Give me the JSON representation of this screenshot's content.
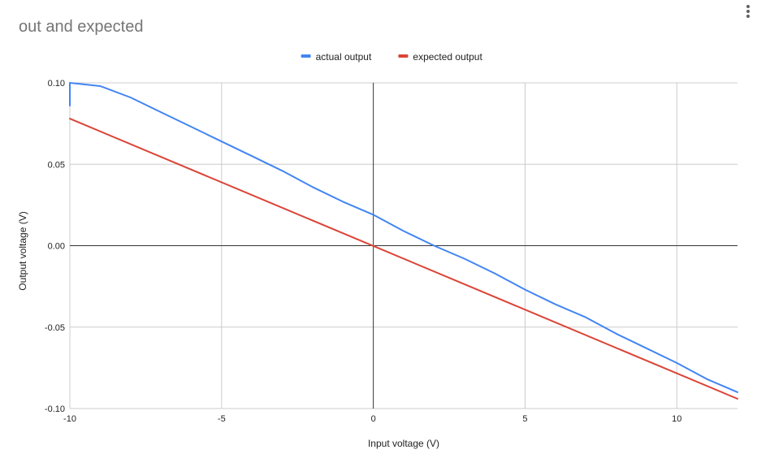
{
  "chart_data": {
    "type": "line",
    "title": "out and expected",
    "xlabel": "Input voltage (V)",
    "ylabel": "Output voltage (V)",
    "xlim": [
      -10,
      12
    ],
    "ylim": [
      -0.1,
      0.1
    ],
    "x_ticks": [
      "-10",
      "-5",
      "0",
      "5",
      "10"
    ],
    "y_ticks": [
      "-0.10",
      "-0.05",
      "0.00",
      "0.05",
      "0.10"
    ],
    "grid": true,
    "legend_position": "top-center",
    "series": [
      {
        "name": "actual output",
        "color": "#4285f4",
        "x": [
          -10,
          -10,
          -9,
          -8,
          -7,
          -6,
          -5,
          -4,
          -3,
          -2,
          -1,
          0,
          1,
          2,
          3,
          4,
          5,
          6,
          7,
          8,
          9,
          10,
          11,
          12
        ],
        "y": [
          0.086,
          0.1,
          0.098,
          0.091,
          0.082,
          0.073,
          0.064,
          0.055,
          0.046,
          0.036,
          0.027,
          0.019,
          0.009,
          0.0,
          -0.008,
          -0.017,
          -0.027,
          -0.036,
          -0.044,
          -0.054,
          -0.063,
          -0.072,
          -0.082,
          -0.09
        ]
      },
      {
        "name": "expected output",
        "color": "#db4437",
        "x": [
          -10,
          12
        ],
        "y": [
          0.078,
          -0.094
        ]
      }
    ]
  }
}
